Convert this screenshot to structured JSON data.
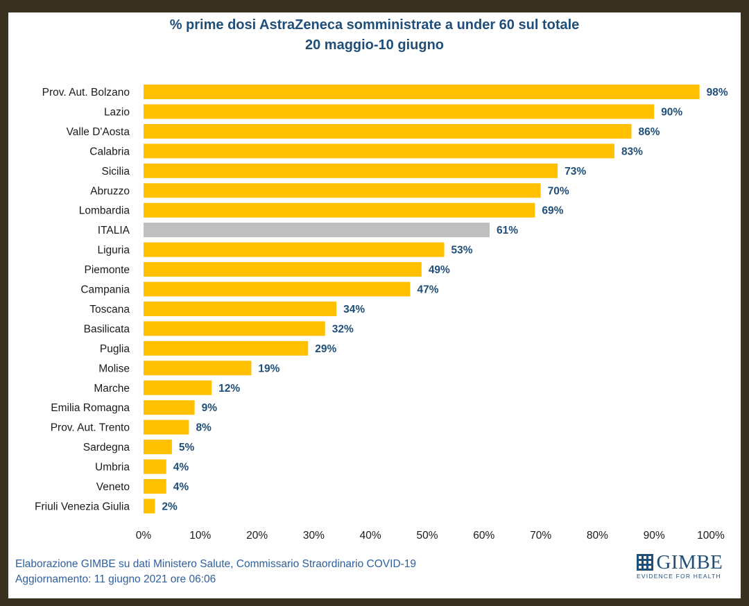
{
  "header": {
    "title_line1": "% prime dosi AstraZeneca somministrate a under 60 sul totale",
    "title_line2": "20 maggio-10 giugno"
  },
  "footer": {
    "source": "Elaborazione GIMBE su dati Ministero Salute, Commissario Straordinario COVID-19",
    "updated": "Aggiornamento: 11 giugno 2021 ore 06:06"
  },
  "logo": {
    "name": "GIMBE",
    "tagline": "EVIDENCE FOR HEALTH"
  },
  "colors": {
    "bar": "#ffc000",
    "highlight_bar": "#bfbfbf",
    "value_label": "#1f4e79",
    "category_label": "#1a1a1a"
  },
  "chart_data": {
    "type": "bar",
    "orientation": "horizontal",
    "title": "% prime dosi AstraZeneca somministrate a under 60 sul totale",
    "subtitle": "20 maggio-10 giugno",
    "categories": [
      "Prov. Aut. Bolzano",
      "Lazio",
      "Valle D'Aosta",
      "Calabria",
      "Sicilia",
      "Abruzzo",
      "Lombardia",
      "ITALIA",
      "Liguria",
      "Piemonte",
      "Campania",
      "Toscana",
      "Basilicata",
      "Puglia",
      "Molise",
      "Marche",
      "Emilia Romagna",
      "Prov. Aut. Trento",
      "Sardegna",
      "Umbria",
      "Veneto",
      "Friuli Venezia Giulia"
    ],
    "values": [
      98,
      90,
      86,
      83,
      73,
      70,
      69,
      61,
      53,
      49,
      47,
      34,
      32,
      29,
      19,
      12,
      9,
      8,
      5,
      4,
      4,
      2
    ],
    "value_labels": [
      "98%",
      "90%",
      "86%",
      "83%",
      "73%",
      "70%",
      "69%",
      "61%",
      "53%",
      "49%",
      "47%",
      "34%",
      "32%",
      "29%",
      "19%",
      "12%",
      "9%",
      "8%",
      "5%",
      "4%",
      "4%",
      "2%"
    ],
    "highlight": "ITALIA",
    "xlim": [
      0,
      100
    ],
    "xticks": [
      "0%",
      "10%",
      "20%",
      "30%",
      "40%",
      "50%",
      "60%",
      "70%",
      "80%",
      "90%",
      "100%"
    ],
    "xlabel": "",
    "ylabel": "",
    "grid": false
  }
}
